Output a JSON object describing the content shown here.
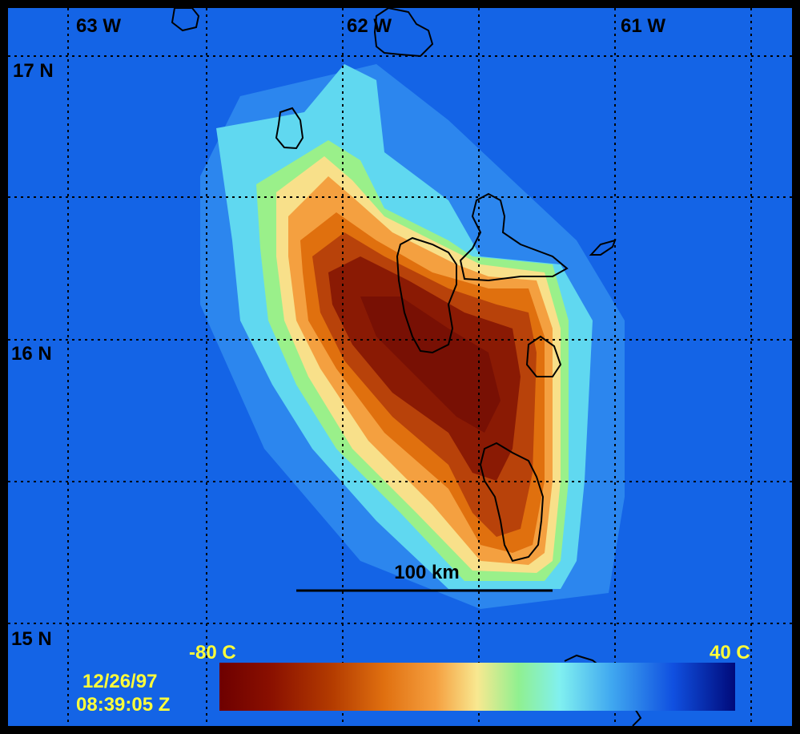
{
  "map": {
    "longitude_labels": [
      "63 W",
      "62 W",
      "61 W"
    ],
    "latitude_labels": [
      "17 N",
      "16 N",
      "15 N"
    ],
    "scale_bar_label": "100 km",
    "date": "12/26/97",
    "time": "08:39:05 Z",
    "colorbar": {
      "min_label": "-80 C",
      "max_label": "40 C",
      "stops": [
        "#6e0000",
        "#9e2600",
        "#d06000",
        "#f08a10",
        "#ffd070",
        "#f8f890",
        "#90f090",
        "#80f0f0",
        "#40a8f0",
        "#1050e0",
        "#000a7a"
      ]
    },
    "colors": {
      "background": "#1464e6",
      "label_black": "#000000",
      "label_yellow": "#ffff3a"
    }
  }
}
